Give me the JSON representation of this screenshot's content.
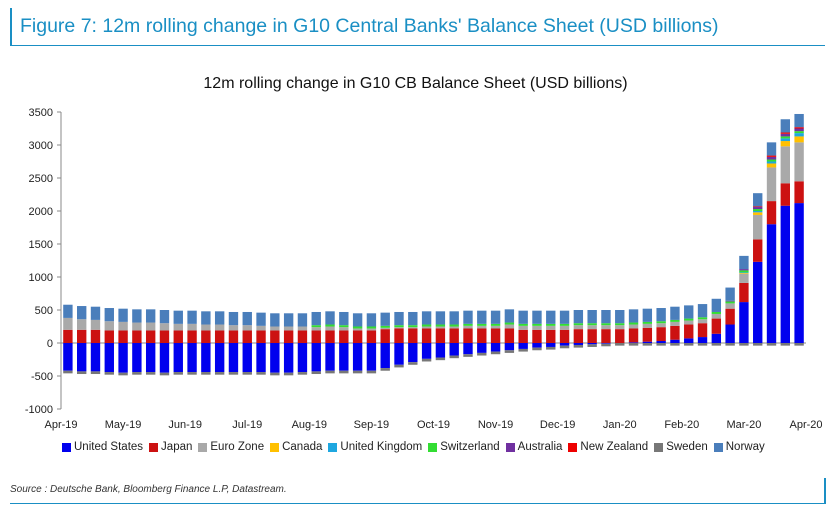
{
  "figure_title": "Figure 7: 12m rolling change in G10 Central Banks' Balance Sheet (USD billions)",
  "source": "Source : Deutsche Bank, Bloomberg Finance L.P, Datastream.",
  "chart_data": {
    "type": "bar",
    "stacked": true,
    "title": "12m rolling change in G10 CB Balance Sheet (USD billions)",
    "xlabel": "",
    "ylabel": "",
    "ylim": [
      -1000,
      3500
    ],
    "yticks": [
      -1000,
      -500,
      0,
      500,
      1000,
      1500,
      2000,
      2500,
      3000,
      3500
    ],
    "x_tick_labels": [
      "Apr-19",
      "May-19",
      "Jun-19",
      "Jul-19",
      "Aug-19",
      "Sep-19",
      "Oct-19",
      "Nov-19",
      "Dec-19",
      "Jan-20",
      "Feb-20",
      "Mar-20",
      "Apr-20"
    ],
    "n_periods": 54,
    "legend_position": "bottom",
    "series": [
      {
        "name": "United States",
        "color": "#0000ee",
        "values": [
          -420,
          -430,
          -430,
          -440,
          -450,
          -440,
          -440,
          -450,
          -440,
          -440,
          -440,
          -440,
          -440,
          -440,
          -440,
          -450,
          -450,
          -440,
          -430,
          -420,
          -420,
          -420,
          -420,
          -380,
          -330,
          -290,
          -240,
          -220,
          -190,
          -170,
          -150,
          -130,
          -110,
          -90,
          -70,
          -60,
          -40,
          -30,
          -20,
          -10,
          0,
          10,
          20,
          30,
          50,
          70,
          90,
          140,
          280,
          620,
          1230,
          1800,
          2080,
          2120
        ]
      },
      {
        "name": "Japan",
        "color": "#cc1111",
        "values": [
          200,
          200,
          200,
          190,
          190,
          190,
          190,
          190,
          190,
          190,
          190,
          190,
          190,
          190,
          190,
          190,
          190,
          190,
          190,
          190,
          190,
          190,
          190,
          210,
          220,
          220,
          220,
          220,
          220,
          220,
          220,
          220,
          220,
          200,
          200,
          200,
          200,
          210,
          210,
          210,
          210,
          210,
          210,
          210,
          210,
          210,
          210,
          230,
          240,
          290,
          340,
          350,
          340,
          330
        ]
      },
      {
        "name": "Euro Zone",
        "color": "#a9a9a9",
        "values": [
          180,
          160,
          150,
          140,
          130,
          120,
          120,
          110,
          100,
          100,
          90,
          90,
          80,
          80,
          70,
          60,
          60,
          60,
          50,
          60,
          50,
          30,
          30,
          20,
          20,
          20,
          30,
          30,
          30,
          40,
          40,
          40,
          60,
          60,
          60,
          60,
          60,
          60,
          60,
          60,
          60,
          60,
          60,
          60,
          60,
          60,
          60,
          70,
          80,
          140,
          370,
          510,
          560,
          590
        ]
      },
      {
        "name": "Canada",
        "color": "#ffc000",
        "values": [
          0,
          0,
          0,
          0,
          0,
          0,
          0,
          0,
          0,
          0,
          0,
          0,
          0,
          0,
          0,
          0,
          0,
          0,
          0,
          0,
          0,
          0,
          0,
          0,
          0,
          0,
          0,
          0,
          0,
          0,
          0,
          0,
          0,
          0,
          0,
          0,
          0,
          0,
          0,
          0,
          0,
          0,
          0,
          0,
          0,
          0,
          0,
          0,
          0,
          10,
          40,
          60,
          80,
          90
        ]
      },
      {
        "name": "United Kingdom",
        "color": "#1ea7e0",
        "values": [
          0,
          0,
          0,
          0,
          0,
          0,
          0,
          0,
          0,
          0,
          0,
          0,
          0,
          0,
          0,
          0,
          0,
          0,
          0,
          0,
          0,
          0,
          0,
          0,
          0,
          0,
          0,
          0,
          0,
          0,
          0,
          0,
          0,
          0,
          0,
          0,
          0,
          0,
          0,
          0,
          0,
          0,
          0,
          0,
          0,
          0,
          0,
          0,
          0,
          10,
          20,
          30,
          40,
          50
        ]
      },
      {
        "name": "Switzerland",
        "color": "#33dd33",
        "values": [
          0,
          0,
          0,
          0,
          0,
          0,
          0,
          0,
          0,
          0,
          0,
          0,
          0,
          0,
          0,
          0,
          0,
          0,
          30,
          30,
          30,
          30,
          30,
          30,
          30,
          30,
          30,
          30,
          30,
          30,
          30,
          30,
          30,
          30,
          30,
          30,
          30,
          30,
          30,
          30,
          30,
          30,
          30,
          30,
          30,
          30,
          30,
          30,
          30,
          30,
          30,
          30,
          30,
          30
        ]
      },
      {
        "name": "Australia",
        "color": "#7030a0",
        "values": [
          0,
          0,
          0,
          0,
          0,
          0,
          0,
          0,
          0,
          0,
          0,
          0,
          0,
          0,
          0,
          0,
          0,
          0,
          0,
          0,
          0,
          0,
          0,
          0,
          0,
          0,
          0,
          0,
          0,
          0,
          0,
          0,
          0,
          0,
          0,
          0,
          0,
          0,
          0,
          0,
          0,
          0,
          0,
          0,
          0,
          0,
          0,
          0,
          10,
          20,
          30,
          40,
          40,
          40
        ]
      },
      {
        "name": "New Zealand",
        "color": "#ee0000",
        "values": [
          0,
          0,
          0,
          0,
          0,
          0,
          0,
          0,
          0,
          0,
          0,
          0,
          0,
          0,
          0,
          0,
          0,
          0,
          0,
          0,
          0,
          0,
          0,
          0,
          0,
          0,
          0,
          0,
          0,
          0,
          0,
          0,
          0,
          0,
          0,
          0,
          0,
          0,
          0,
          0,
          0,
          0,
          0,
          0,
          0,
          0,
          0,
          0,
          0,
          0,
          10,
          20,
          20,
          20
        ]
      },
      {
        "name": "Sweden",
        "color": "#777777",
        "values": [
          -40,
          -40,
          -40,
          -40,
          -40,
          -40,
          -40,
          -40,
          -40,
          -40,
          -40,
          -40,
          -40,
          -40,
          -40,
          -40,
          -40,
          -40,
          -40,
          -40,
          -40,
          -40,
          -40,
          -40,
          -40,
          -40,
          -40,
          -40,
          -40,
          -40,
          -40,
          -40,
          -40,
          -40,
          -40,
          -40,
          -40,
          -40,
          -40,
          -40,
          -40,
          -40,
          -40,
          -40,
          -40,
          -40,
          -40,
          -40,
          -40,
          -40,
          -40,
          -40,
          -40,
          -40
        ]
      },
      {
        "name": "Norway",
        "color": "#4a7ebb",
        "values": [
          200,
          200,
          200,
          200,
          200,
          200,
          200,
          200,
          200,
          200,
          200,
          200,
          200,
          200,
          200,
          200,
          200,
          200,
          200,
          200,
          200,
          200,
          200,
          200,
          200,
          200,
          200,
          200,
          200,
          200,
          200,
          200,
          200,
          200,
          200,
          200,
          200,
          200,
          200,
          200,
          200,
          200,
          200,
          200,
          200,
          200,
          200,
          200,
          200,
          200,
          200,
          200,
          200,
          200
        ]
      }
    ]
  }
}
